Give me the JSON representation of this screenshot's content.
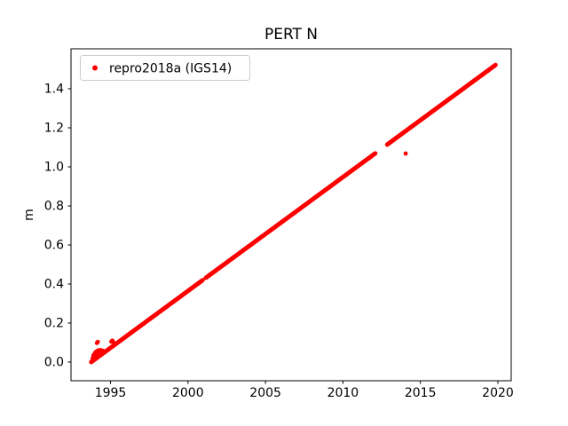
{
  "chart_data": {
    "type": "scatter",
    "title": "PERT N",
    "xlabel": "",
    "ylabel": "m",
    "legend_label": "repro2018a (IGS14)",
    "legend_position": "upper left",
    "grid": false,
    "series_color": "#ff0000",
    "marker": "dot",
    "xlim": [
      1992.45,
      2020.86
    ],
    "ylim": [
      -0.0955,
      1.6045
    ],
    "xticks": [
      1995,
      2000,
      2005,
      2010,
      2015,
      2020
    ],
    "yticks": [
      0.0,
      0.2,
      0.4,
      0.6,
      0.8,
      1.0,
      1.2,
      1.4
    ],
    "trend": {
      "x_start": 1993.75,
      "x_end": 2019.85,
      "y_start": 0.0,
      "y_end": 1.52,
      "slope_m_per_year": 0.0583
    },
    "segments": [
      [
        1993.75,
        2000.95
      ],
      [
        2001.15,
        2012.1
      ],
      [
        2012.85,
        2019.85
      ]
    ],
    "sample_step_years": 0.02,
    "outliers": [
      [
        2014.05,
        1.068
      ],
      [
        1994.12,
        0.098
      ],
      [
        1994.18,
        0.103
      ]
    ],
    "start_cluster": [
      [
        1993.8,
        0.005
      ],
      [
        1993.85,
        0.02
      ],
      [
        1993.9,
        0.035
      ],
      [
        1993.95,
        0.012
      ],
      [
        1994.0,
        0.048
      ],
      [
        1994.05,
        0.03
      ],
      [
        1994.1,
        0.055
      ],
      [
        1994.15,
        0.04
      ],
      [
        1994.2,
        0.06
      ],
      [
        1994.28,
        0.05
      ],
      [
        1994.35,
        0.062
      ],
      [
        1994.42,
        0.048
      ],
      [
        1994.5,
        0.058
      ],
      [
        1994.58,
        0.055
      ],
      [
        1995.05,
        0.105
      ],
      [
        1995.12,
        0.11
      ],
      [
        1995.2,
        0.1
      ]
    ]
  }
}
